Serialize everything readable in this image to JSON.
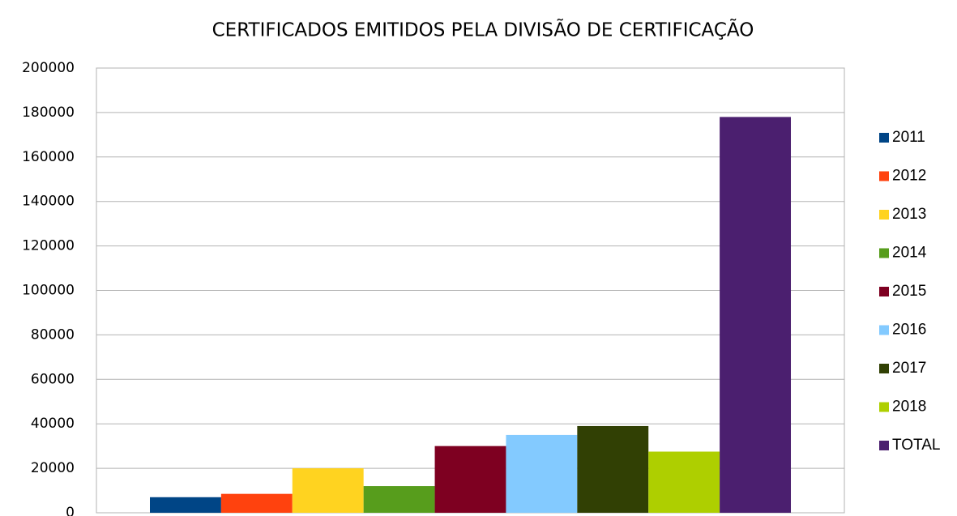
{
  "chart_data": {
    "type": "bar",
    "title": "CERTIFICADOS EMITIDOS PELA DIVISÃO DE CERTIFICAÇÃO",
    "categories": [
      null
    ],
    "series": [
      {
        "name": "2011",
        "color": "#004586",
        "values": [
          7000
        ]
      },
      {
        "name": "2012",
        "color": "#ff420e",
        "values": [
          8500
        ]
      },
      {
        "name": "2013",
        "color": "#ffd320",
        "values": [
          20000
        ]
      },
      {
        "name": "2014",
        "color": "#579d1c",
        "values": [
          12000
        ]
      },
      {
        "name": "2015",
        "color": "#7e0021",
        "values": [
          30000
        ]
      },
      {
        "name": "2016",
        "color": "#83caff",
        "values": [
          35000
        ]
      },
      {
        "name": "2017",
        "color": "#314004",
        "values": [
          39000
        ]
      },
      {
        "name": "2018",
        "color": "#aecf00",
        "values": [
          27500
        ]
      },
      {
        "name": "TOTAL",
        "color": "#4b1f6f",
        "values": [
          178000
        ]
      }
    ],
    "ylim": [
      0,
      200000
    ],
    "yticks": [
      0,
      20000,
      40000,
      60000,
      80000,
      100000,
      120000,
      140000,
      160000,
      180000,
      200000
    ],
    "grid": true,
    "legend": "right"
  }
}
